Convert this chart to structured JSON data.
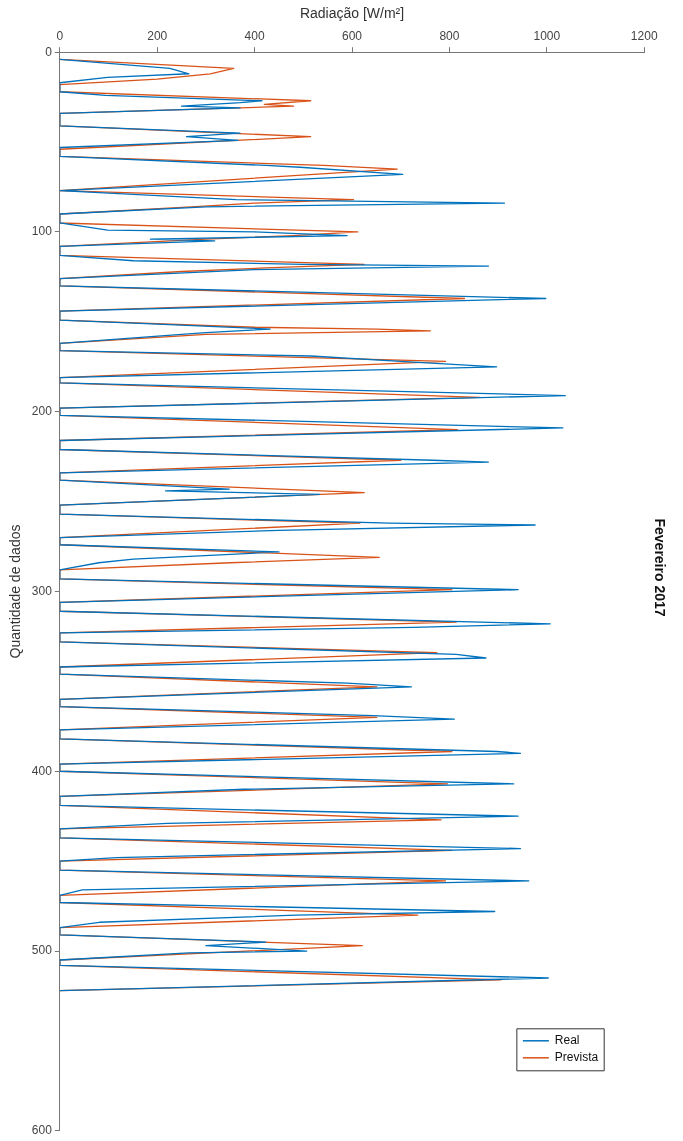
{
  "chart_data": {
    "type": "line",
    "title": "Fevereiro 2017",
    "xlabel": "Radiação [W/m²]",
    "ylabel": "Quantidade de dados",
    "xlim": [
      0,
      1200
    ],
    "xticks": [
      0,
      200,
      400,
      600,
      800,
      1000,
      1200
    ],
    "ylim": [
      600,
      0
    ],
    "yticks": [
      0,
      100,
      200,
      300,
      400,
      500,
      600
    ],
    "grid": false,
    "legend": "bottom right",
    "marker": "none",
    "line_style": "solid",
    "series": [
      {
        "name": "Real",
        "color": "#0072bd",
        "values": [
          4,
          9,
          12,
          14,
          17,
          22,
          24,
          27,
          28,
          30,
          31,
          34,
          41,
          45,
          47,
          49,
          53,
          58,
          63,
          64,
          68,
          77,
          82,
          84,
          86,
          90,
          95,
          99,
          100,
          102,
          104,
          105,
          108,
          113,
          116,
          118,
          119,
          121,
          126,
          130,
          137,
          144,
          149,
          151,
          154,
          156,
          157,
          162,
          166,
          169,
          172,
          175,
          181,
          184,
          191,
          198,
          202,
          209,
          216,
          221,
          227,
          228,
          234,
          238,
          243,
          244,
          246,
          252,
          257,
          262,
          263,
          266,
          270,
          274,
          278,
          282,
          284,
          288,
          293,
          299,
          306,
          311,
          318,
          320,
          323,
          328,
          335,
          337,
          342,
          346,
          351,
          353,
          360,
          364,
          369,
          371,
          377,
          382,
          389,
          390,
          396,
          400,
          407,
          410,
          414,
          419,
          425,
          429,
          432,
          437,
          443,
          448,
          450,
          455,
          461,
          466,
          469,
          473,
          478,
          480,
          484,
          487,
          491,
          495,
          497,
          500,
          501,
          505,
          508,
          515,
          522
        ],
        "x": [
          0,
          226,
          265,
          98,
          0,
          0,
          94,
          415,
          371,
          250,
          370,
          0,
          0,
          370,
          260,
          366,
          0,
          0,
          423,
          493,
          704,
          0,
          362,
          913,
          300,
          0,
          0,
          98,
          400,
          590,
          186,
          318,
          0,
          0,
          151,
          500,
          880,
          400,
          0,
          0,
          998,
          0,
          0,
          177,
          432,
          300,
          250,
          0,
          0,
          515,
          700,
          897,
          0,
          0,
          1038,
          0,
          0,
          1033,
          0,
          0,
          766,
          880,
          0,
          0,
          348,
          217,
          533,
          0,
          0,
          678,
          976,
          450,
          0,
          0,
          450,
          151,
          80,
          0,
          0,
          941,
          0,
          0,
          1007,
          726,
          0,
          0,
          814,
          875,
          0,
          0,
          590,
          722,
          0,
          0,
          643,
          810,
          0,
          0,
          897,
          946,
          0,
          0,
          932,
          379,
          0,
          0,
          941,
          221,
          0,
          0,
          946,
          116,
          0,
          0,
          963,
          46,
          0,
          0,
          893,
          485,
          81,
          0,
          0,
          423,
          300,
          507,
          265,
          0,
          0,
          1003,
          0
        ]
      },
      {
        "name": "Prevista",
        "color": "#d95319",
        "values": [
          4,
          9,
          12,
          15,
          18,
          22,
          27,
          29,
          30,
          34,
          41,
          47,
          54,
          58,
          63,
          65,
          77,
          82,
          84,
          86,
          90,
          95,
          100,
          102,
          104,
          108,
          113,
          118,
          120,
          122,
          126,
          130,
          137,
          144,
          149,
          153,
          154,
          155,
          157,
          162,
          166,
          172,
          181,
          184,
          192,
          198,
          202,
          210,
          216,
          221,
          227,
          234,
          238,
          245,
          252,
          257,
          262,
          270,
          274,
          281,
          284,
          288,
          293,
          299,
          306,
          311,
          317,
          323,
          328,
          334,
          342,
          346,
          353,
          360,
          364,
          370,
          377,
          382,
          389,
          396,
          400,
          407,
          414,
          419,
          427,
          432,
          437,
          444,
          450,
          455,
          461,
          469,
          473,
          480,
          487,
          491,
          497,
          505,
          508,
          516,
          522
        ],
        "x": [
          0,
          357,
          309,
          200,
          0,
          0,
          515,
          420,
          480,
          0,
          0,
          515,
          0,
          0,
          542,
          693,
          0,
          603,
          400,
          270,
          0,
          0,
          612,
          480,
          300,
          0,
          0,
          625,
          423,
          250,
          0,
          0,
          831,
          0,
          0,
          400,
          651,
          761,
          300,
          0,
          0,
          792,
          0,
          0,
          862,
          0,
          0,
          816,
          0,
          0,
          700,
          0,
          0,
          625,
          0,
          0,
          616,
          0,
          0,
          656,
          350,
          0,
          0,
          805,
          0,
          0,
          814,
          0,
          0,
          774,
          0,
          0,
          651,
          0,
          0,
          651,
          0,
          0,
          805,
          0,
          0,
          796,
          0,
          0,
          783,
          0,
          0,
          805,
          0,
          0,
          792,
          0,
          0,
          735,
          0,
          0,
          621,
          0,
          0,
          906,
          0
        ]
      }
    ]
  }
}
